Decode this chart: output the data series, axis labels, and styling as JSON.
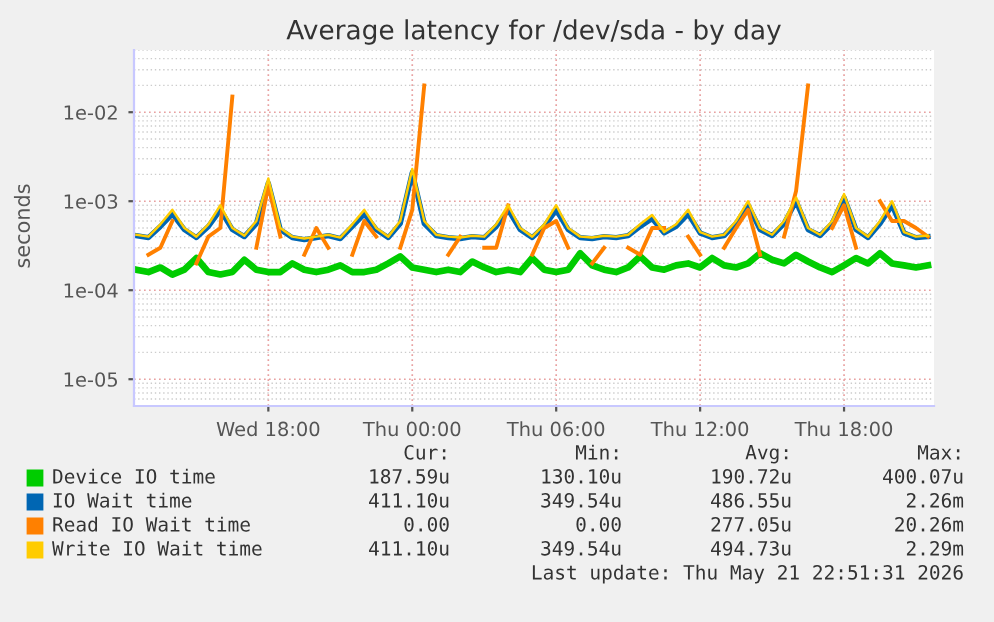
{
  "chart_data": {
    "type": "line",
    "title": "Average latency for /dev/sda - by day",
    "ylabel": "seconds",
    "log": "y",
    "grid": true,
    "legend": "bottom",
    "xlim": [
      "2026-05-20T12:24",
      "2026-05-21T21:45"
    ],
    "xticks": [
      {
        "value": "2026-05-20T18:00",
        "label": "Wed 18:00"
      },
      {
        "value": "2026-05-21T00:00",
        "label": "Thu 00:00"
      },
      {
        "value": "2026-05-21T06:00",
        "label": "Thu 06:00"
      },
      {
        "value": "2026-05-21T12:00",
        "label": "Thu 12:00"
      },
      {
        "value": "2026-05-21T18:00",
        "label": "Thu 18:00"
      }
    ],
    "ylim": [
      5e-06,
      0.05
    ],
    "yticks": [
      {
        "value": 1e-05,
        "label": "1e-05"
      },
      {
        "value": 0.0001,
        "label": "1e-04"
      },
      {
        "value": 0.001,
        "label": "1e-03"
      },
      {
        "value": 0.01,
        "label": "1e-02"
      }
    ],
    "x": [
      "2026-05-20T12:30",
      "2026-05-20T13:00",
      "2026-05-20T13:30",
      "2026-05-20T14:00",
      "2026-05-20T14:30",
      "2026-05-20T15:00",
      "2026-05-20T15:30",
      "2026-05-20T16:00",
      "2026-05-20T16:30",
      "2026-05-20T17:00",
      "2026-05-20T17:30",
      "2026-05-20T18:00",
      "2026-05-20T18:30",
      "2026-05-20T19:00",
      "2026-05-20T19:30",
      "2026-05-20T20:00",
      "2026-05-20T20:30",
      "2026-05-20T21:00",
      "2026-05-20T21:30",
      "2026-05-20T22:00",
      "2026-05-20T22:30",
      "2026-05-20T23:00",
      "2026-05-20T23:30",
      "2026-05-21T00:00",
      "2026-05-21T00:30",
      "2026-05-21T01:00",
      "2026-05-21T01:30",
      "2026-05-21T02:00",
      "2026-05-21T02:30",
      "2026-05-21T03:00",
      "2026-05-21T03:30",
      "2026-05-21T04:00",
      "2026-05-21T04:30",
      "2026-05-21T05:00",
      "2026-05-21T05:30",
      "2026-05-21T06:00",
      "2026-05-21T06:30",
      "2026-05-21T07:00",
      "2026-05-21T07:30",
      "2026-05-21T08:00",
      "2026-05-21T08:30",
      "2026-05-21T09:00",
      "2026-05-21T09:30",
      "2026-05-21T10:00",
      "2026-05-21T10:30",
      "2026-05-21T11:00",
      "2026-05-21T11:30",
      "2026-05-21T12:00",
      "2026-05-21T12:30",
      "2026-05-21T13:00",
      "2026-05-21T13:30",
      "2026-05-21T14:00",
      "2026-05-21T14:30",
      "2026-05-21T15:00",
      "2026-05-21T15:30",
      "2026-05-21T16:00",
      "2026-05-21T16:30",
      "2026-05-21T17:00",
      "2026-05-21T17:30",
      "2026-05-21T18:00",
      "2026-05-21T18:30",
      "2026-05-21T19:00",
      "2026-05-21T19:30",
      "2026-05-21T20:00",
      "2026-05-21T20:30",
      "2026-05-21T21:00",
      "2026-05-21T21:30"
    ],
    "series": [
      {
        "name": "Device IO time",
        "color": "#00cc00",
        "values": [
          0.00017,
          0.00016,
          0.00018,
          0.00015,
          0.00017,
          0.00023,
          0.00016,
          0.00015,
          0.00016,
          0.00022,
          0.00017,
          0.00016,
          0.00016,
          0.0002,
          0.00017,
          0.00016,
          0.00017,
          0.00019,
          0.00016,
          0.00016,
          0.00017,
          0.0002,
          0.00024,
          0.00018,
          0.00017,
          0.00016,
          0.00017,
          0.00016,
          0.00021,
          0.00018,
          0.00016,
          0.00017,
          0.00016,
          0.00023,
          0.00017,
          0.00016,
          0.00017,
          0.00026,
          0.00019,
          0.00017,
          0.00016,
          0.00018,
          0.00024,
          0.00018,
          0.00017,
          0.00019,
          0.0002,
          0.00018,
          0.00023,
          0.00019,
          0.00018,
          0.0002,
          0.00026,
          0.00022,
          0.0002,
          0.00025,
          0.00021,
          0.00018,
          0.00016,
          0.00019,
          0.00023,
          0.0002,
          0.00026,
          0.0002,
          0.00019,
          0.00018,
          0.00019
        ]
      },
      {
        "name": "IO Wait time",
        "color": "#0066b3",
        "values": [
          0.00041,
          0.00039,
          0.00052,
          0.00072,
          0.00048,
          0.00039,
          0.00052,
          0.0008,
          0.00048,
          0.0004,
          0.00056,
          0.0016,
          0.00048,
          0.00039,
          0.00037,
          0.00039,
          0.00041,
          0.00038,
          0.00052,
          0.00072,
          0.00048,
          0.00039,
          0.00056,
          0.0021,
          0.00056,
          0.00041,
          0.00039,
          0.00038,
          0.0004,
          0.00039,
          0.00052,
          0.0008,
          0.00048,
          0.00039,
          0.00052,
          0.0008,
          0.00048,
          0.00039,
          0.00038,
          0.0004,
          0.00039,
          0.00041,
          0.00052,
          0.00064,
          0.00044,
          0.00052,
          0.00072,
          0.00044,
          0.00039,
          0.00041,
          0.00056,
          0.0009,
          0.00048,
          0.00041,
          0.00056,
          0.001,
          0.00048,
          0.00041,
          0.00056,
          0.0011,
          0.00048,
          0.00039,
          0.00056,
          0.0009,
          0.00044,
          0.00039,
          0.0004
        ]
      },
      {
        "name": "Read IO Wait time",
        "color": "#ff8000",
        "values": [
          null,
          0.00025,
          0.0003,
          0.0006,
          null,
          0.0002,
          0.0004,
          0.0005,
          0.015,
          null,
          0.0003,
          0.0015,
          0.0004,
          null,
          0.00025,
          0.0005,
          0.0003,
          null,
          0.00025,
          0.0006,
          0.0004,
          null,
          0.0003,
          0.0008,
          0.02,
          null,
          0.00025,
          0.0004,
          null,
          0.0003,
          0.0003,
          0.0009,
          null,
          0.00025,
          0.0005,
          0.0006,
          0.0003,
          null,
          0.0002,
          0.0003,
          null,
          0.0003,
          0.00025,
          0.0005,
          0.0005,
          null,
          0.0004,
          0.00025,
          null,
          0.0003,
          0.0005,
          0.0008,
          0.00025,
          null,
          0.0004,
          0.0013,
          0.02,
          null,
          0.0005,
          0.0009,
          0.0003,
          null,
          0.001,
          0.0006,
          0.0006,
          0.0005,
          0.0004
        ]
      },
      {
        "name": "Write IO Wait time",
        "color": "#ffcc00",
        "values": [
          0.00042,
          0.0004,
          0.00055,
          0.0008,
          0.0005,
          0.0004,
          0.00055,
          0.0009,
          0.0005,
          0.00041,
          0.0006,
          0.0018,
          0.0005,
          0.0004,
          0.00038,
          0.0004,
          0.00042,
          0.00039,
          0.00055,
          0.0008,
          0.0005,
          0.0004,
          0.0006,
          0.0023,
          0.0006,
          0.00042,
          0.0004,
          0.00039,
          0.00041,
          0.0004,
          0.00055,
          0.0009,
          0.0005,
          0.0004,
          0.00055,
          0.0009,
          0.0005,
          0.0004,
          0.00039,
          0.00041,
          0.0004,
          0.00042,
          0.00055,
          0.0007,
          0.00045,
          0.00055,
          0.0008,
          0.00045,
          0.0004,
          0.00042,
          0.0006,
          0.001,
          0.0005,
          0.00042,
          0.0006,
          0.0011,
          0.0005,
          0.00042,
          0.0006,
          0.0012,
          0.0005,
          0.0004,
          0.0006,
          0.001,
          0.00045,
          0.0004,
          0.00041
        ]
      }
    ],
    "annotations": [
      "Cur:",
      "Min:",
      "Avg:",
      "Max:",
      "187.59u",
      "130.10u",
      "190.72u",
      "400.07u",
      "411.10u",
      "349.54u",
      "486.55u",
      "2.26m",
      "0.00",
      "0.00",
      "277.05u",
      "20.26m",
      "411.10u",
      "349.54u",
      "494.73u",
      "2.29m",
      "Last update: Thu May 21 22:51:31 2026"
    ]
  }
}
